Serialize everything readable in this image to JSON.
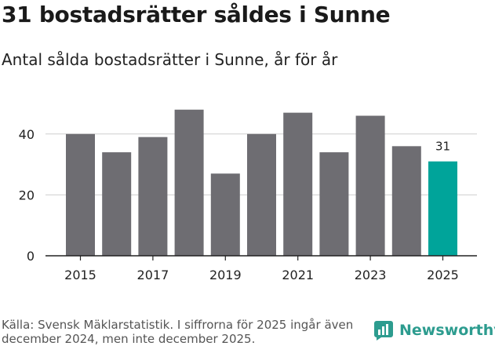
{
  "header": {
    "title": "31 bostadsrätter såldes i Sunne",
    "subtitle": "Antal sålda bostadsrätter i Sunne, år för år"
  },
  "footer": {
    "source": "Källa: Svensk Mäklarstatistik. I siffrorna för 2025 ingår även december 2024, men inte december 2025.",
    "brand": "Newsworthy"
  },
  "colors": {
    "bar": "#6e6d72",
    "highlight": "#00a49a",
    "axis": "#222222",
    "grid": "#cfcfcf",
    "brand": "#2d9c8f"
  },
  "chart_data": {
    "type": "bar",
    "title": "31 bostadsrätter såldes i Sunne",
    "xlabel": "",
    "ylabel": "",
    "categories": [
      "2015",
      "2016",
      "2017",
      "2018",
      "2019",
      "2020",
      "2021",
      "2022",
      "2023",
      "2024",
      "2025"
    ],
    "values": [
      40,
      34,
      39,
      48,
      27,
      40,
      47,
      34,
      46,
      36,
      31
    ],
    "highlight_index": 10,
    "data_labels": [
      {
        "index": 10,
        "text": "31"
      }
    ],
    "x_tick_labels": [
      "2015",
      "2017",
      "2019",
      "2021",
      "2023",
      "2025"
    ],
    "y_ticks": [
      0,
      20,
      40
    ],
    "ylim": [
      0,
      50
    ],
    "grid": true
  }
}
